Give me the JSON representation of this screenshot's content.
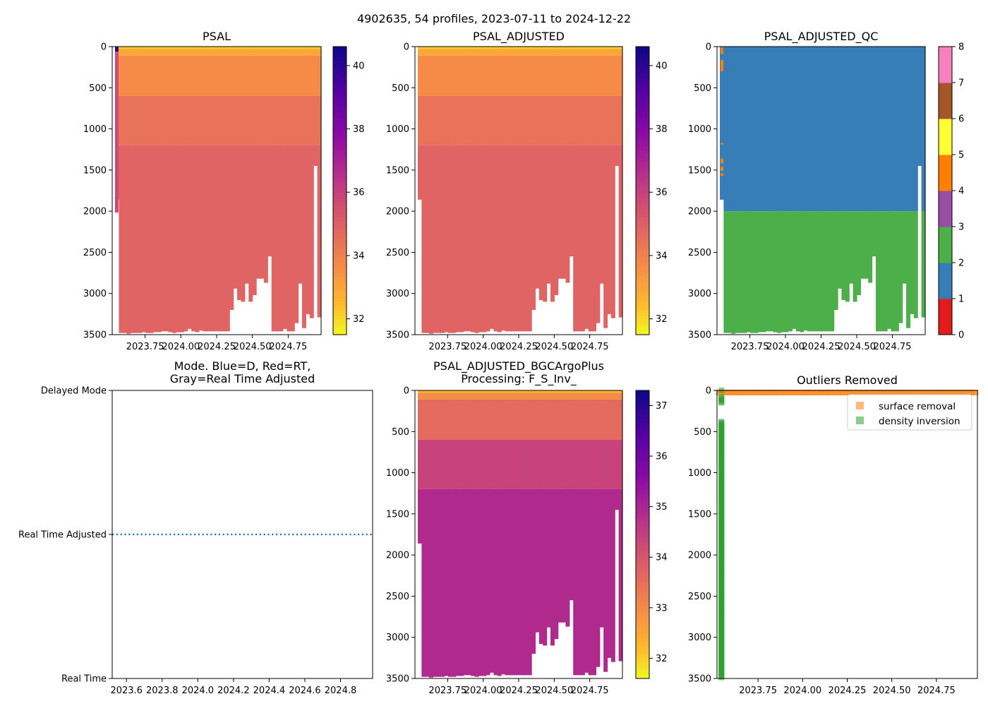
{
  "figure_title": "4902635, 54 profiles, 2023-07-11 to 2024-12-22",
  "chart_data": [
    {
      "id": "psal",
      "type": "heatmap",
      "title": "PSAL",
      "ylim": [
        3500,
        0
      ],
      "yticks": [
        "0",
        "500",
        "1000",
        "1500",
        "2000",
        "2500",
        "3000",
        "3500"
      ],
      "xticks": [
        "2023.75",
        "2024.00",
        "2024.25",
        "2024.50",
        "2024.75"
      ],
      "xtick_values": [
        2023.75,
        2024.0,
        2024.25,
        2024.5,
        2024.75
      ],
      "xlim": [
        2023.52,
        2024.98
      ],
      "colorbar": {
        "cmap": "plasma_r",
        "range": [
          31.5,
          40.6
        ],
        "ticks": [
          "32",
          "34",
          "36",
          "38",
          "40"
        ],
        "tick_values": [
          32,
          34,
          36,
          38,
          40
        ]
      },
      "surface_value": 32.2,
      "mixed_value": 33.7,
      "deep_value": 34.9
    },
    {
      "id": "psal_adj",
      "type": "heatmap",
      "title": "PSAL_ADJUSTED",
      "ylim": [
        3500,
        0
      ],
      "yticks": [
        "0",
        "500",
        "1000",
        "1500",
        "2000",
        "2500",
        "3000",
        "3500"
      ],
      "xticks": [
        "2023.75",
        "2024.00",
        "2024.25",
        "2024.50",
        "2024.75"
      ],
      "xtick_values": [
        2023.75,
        2024.0,
        2024.25,
        2024.5,
        2024.75
      ],
      "xlim": [
        2023.52,
        2024.98
      ],
      "colorbar": {
        "cmap": "plasma_r",
        "range": [
          31.5,
          40.6
        ],
        "ticks": [
          "32",
          "34",
          "36",
          "38",
          "40"
        ],
        "tick_values": [
          32,
          34,
          36,
          38,
          40
        ]
      },
      "surface_value": 32.2,
      "mixed_value": 33.7,
      "deep_value": 34.9
    },
    {
      "id": "psal_qc",
      "type": "heatmap",
      "title": "PSAL_ADJUSTED_QC",
      "ylim": [
        3500,
        0
      ],
      "yticks": [
        "0",
        "500",
        "1000",
        "1500",
        "2000",
        "2500",
        "3000",
        "3500"
      ],
      "xticks": [
        "2023.75",
        "2024.00",
        "2024.25",
        "2024.50",
        "2024.75"
      ],
      "xtick_values": [
        2023.75,
        2024.0,
        2024.25,
        2024.5,
        2024.75
      ],
      "xlim": [
        2023.52,
        2024.98
      ],
      "qc_split_depth": 2000,
      "qc_upper_flag": 1,
      "qc_lower_flag": 2,
      "qc_bad_flag": 4,
      "colorbar": {
        "categorical": true,
        "ticks": [
          "0",
          "1",
          "2",
          "3",
          "4",
          "5",
          "6",
          "7",
          "8"
        ],
        "colors": [
          "#e41a1c",
          "#377eb8",
          "#4daf4a",
          "#984ea3",
          "#ff7f00",
          "#ffff33",
          "#a65628",
          "#f781bf",
          "#999999"
        ]
      }
    },
    {
      "id": "mode",
      "type": "line",
      "title_lines": [
        "Mode. Blue=D, Red=RT,",
        "Gray=Real Time Adjusted"
      ],
      "yticks": [
        "Delayed Mode",
        "Real Time Adjusted",
        "Real Time"
      ],
      "xticks": [
        "2023.6",
        "2023.8",
        "2024.0",
        "2024.2",
        "2024.4",
        "2024.6",
        "2024.8"
      ],
      "xtick_values": [
        2023.6,
        2023.8,
        2024.0,
        2024.2,
        2024.4,
        2024.6,
        2024.8
      ],
      "xlim": [
        2023.52,
        2024.98
      ],
      "series": [
        {
          "name": "mode",
          "style": "dotted",
          "color": "#1f77b4",
          "y_level": "Real Time Adjusted"
        }
      ]
    },
    {
      "id": "bgc",
      "type": "heatmap",
      "title_lines": [
        "PSAL_ADJUSTED_BGCArgoPlus",
        "Processing: F_S_Inv_"
      ],
      "ylim": [
        3500,
        0
      ],
      "yticks": [
        "0",
        "500",
        "1000",
        "1500",
        "2000",
        "2500",
        "3000",
        "3500"
      ],
      "xticks": [
        "2023.75",
        "2024.00",
        "2024.25",
        "2024.50",
        "2024.75"
      ],
      "xtick_values": [
        2023.75,
        2024.0,
        2024.25,
        2024.5,
        2024.75
      ],
      "xlim": [
        2023.52,
        2024.98
      ],
      "colorbar": {
        "cmap": "plasma_r",
        "range": [
          31.6,
          37.3
        ],
        "ticks": [
          "32",
          "33",
          "34",
          "35",
          "36",
          "37"
        ],
        "tick_values": [
          32,
          33,
          34,
          35,
          36,
          37
        ]
      },
      "surface_value": 32.3,
      "mixed_value": 33.6,
      "deep_value": 34.9
    },
    {
      "id": "outliers",
      "type": "scatter",
      "title": "Outliers Removed",
      "ylim": [
        3500,
        0
      ],
      "yticks": [
        "0",
        "500",
        "1000",
        "1500",
        "2000",
        "2500",
        "3000",
        "3500"
      ],
      "xticks": [
        "2023.75",
        "2024.00",
        "2024.25",
        "2024.50",
        "2024.75"
      ],
      "xtick_values": [
        2023.75,
        2024.0,
        2024.25,
        2024.5,
        2024.75
      ],
      "xlim": [
        2023.52,
        2024.98
      ],
      "legend_position": "top-right",
      "series": [
        {
          "name": "surface removal",
          "color": "#ff7f0e",
          "depth_range": [
            0,
            20
          ]
        },
        {
          "name": "density inversion",
          "color": "#2ca02c",
          "x": 2023.545,
          "depth_ranges": [
            [
              0,
              10
            ],
            [
              80,
              150
            ],
            [
              380,
              3500
            ]
          ]
        }
      ]
    }
  ]
}
